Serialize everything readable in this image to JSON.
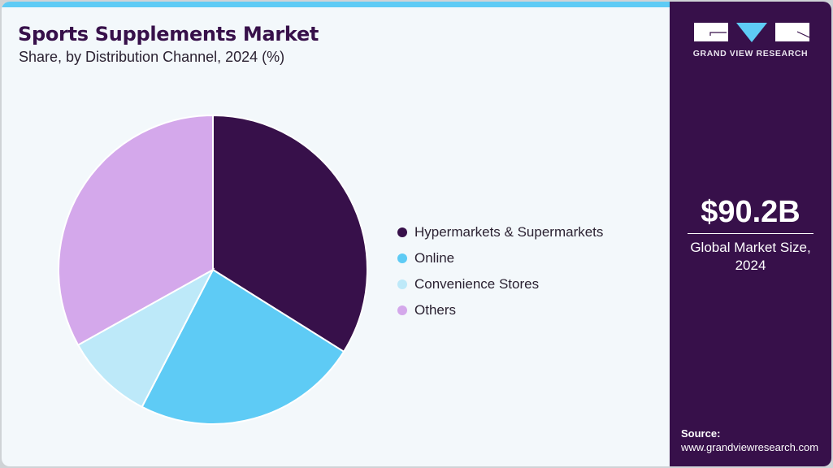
{
  "header": {
    "title": "Sports Supplements Market",
    "subtitle": "Share, by Distribution Channel, 2024 (%)"
  },
  "legend": {
    "items": [
      {
        "label": "Hypermarkets & Supermarkets",
        "color": "#37104a"
      },
      {
        "label": "Online",
        "color": "#5ecbf5"
      },
      {
        "label": "Convenience Stores",
        "color": "#bde9f9"
      },
      {
        "label": "Others",
        "color": "#d4a8eb"
      }
    ]
  },
  "sidebar": {
    "logo_text": "GRAND VIEW RESEARCH",
    "market_value": "$90.2B",
    "market_label_line1": "Global Market Size,",
    "market_label_line2": "2024",
    "source_label": "Source:",
    "source_url": "www.grandviewresearch.com"
  },
  "colors": {
    "accent_bar": "#5ecbf5",
    "sidebar_bg": "#37104a",
    "page_bg": "#f3f8fb",
    "title": "#37104a"
  },
  "chart_data": {
    "type": "pie",
    "title": "Sports Supplements Market",
    "subtitle": "Share, by Distribution Channel, 2024 (%)",
    "categories": [
      "Hypermarkets & Supermarkets",
      "Online",
      "Convenience Stores",
      "Others"
    ],
    "values": [
      33.9,
      23.7,
      9.3,
      33.1
    ],
    "colors": [
      "#37104a",
      "#5ecbf5",
      "#bde9f9",
      "#d4a8eb"
    ],
    "start_angle_deg": 0,
    "direction": "clockwise",
    "legend_position": "right",
    "data_labels": false
  }
}
